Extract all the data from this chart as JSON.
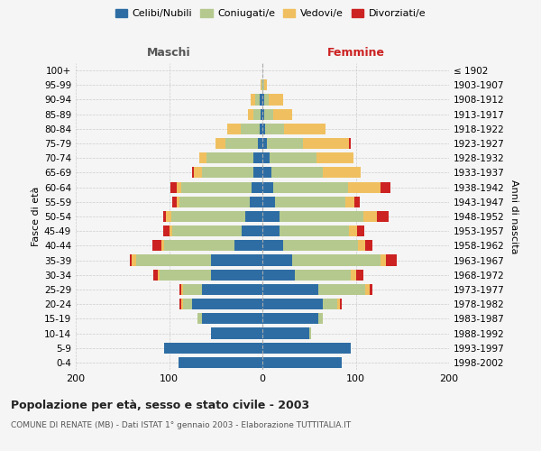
{
  "age_groups": [
    "0-4",
    "5-9",
    "10-14",
    "15-19",
    "20-24",
    "25-29",
    "30-34",
    "35-39",
    "40-44",
    "45-49",
    "50-54",
    "55-59",
    "60-64",
    "65-69",
    "70-74",
    "75-79",
    "80-84",
    "85-89",
    "90-94",
    "95-99",
    "100+"
  ],
  "birth_years": [
    "1998-2002",
    "1993-1997",
    "1988-1992",
    "1983-1987",
    "1978-1982",
    "1973-1977",
    "1968-1972",
    "1963-1967",
    "1958-1962",
    "1953-1957",
    "1948-1952",
    "1943-1947",
    "1938-1942",
    "1933-1937",
    "1928-1932",
    "1923-1927",
    "1918-1922",
    "1913-1917",
    "1908-1912",
    "1903-1907",
    "≤ 1902"
  ],
  "maschi": {
    "celibi": [
      90,
      105,
      55,
      65,
      75,
      65,
      55,
      55,
      30,
      22,
      18,
      14,
      12,
      10,
      10,
      5,
      3,
      2,
      3,
      0,
      0
    ],
    "coniugati": [
      0,
      0,
      0,
      5,
      10,
      20,
      55,
      80,
      75,
      75,
      80,
      75,
      75,
      55,
      50,
      35,
      20,
      8,
      5,
      1,
      0
    ],
    "vedovi": [
      0,
      0,
      0,
      0,
      2,
      2,
      2,
      5,
      3,
      3,
      5,
      3,
      5,
      8,
      8,
      10,
      15,
      5,
      5,
      1,
      0
    ],
    "divorziati": [
      0,
      0,
      0,
      0,
      2,
      2,
      5,
      2,
      10,
      6,
      3,
      5,
      7,
      2,
      0,
      0,
      0,
      0,
      0,
      0,
      0
    ]
  },
  "femmine": {
    "nubili": [
      85,
      95,
      50,
      60,
      65,
      60,
      35,
      32,
      22,
      18,
      18,
      14,
      12,
      10,
      8,
      5,
      3,
      2,
      2,
      0,
      0
    ],
    "coniugate": [
      0,
      0,
      2,
      5,
      15,
      50,
      60,
      95,
      80,
      75,
      90,
      75,
      80,
      55,
      50,
      38,
      20,
      10,
      5,
      2,
      0
    ],
    "vedove": [
      0,
      0,
      0,
      0,
      3,
      5,
      5,
      5,
      8,
      8,
      15,
      10,
      35,
      40,
      40,
      50,
      45,
      20,
      15,
      3,
      0
    ],
    "divorziate": [
      0,
      0,
      0,
      0,
      2,
      3,
      8,
      12,
      8,
      8,
      12,
      5,
      10,
      0,
      0,
      2,
      0,
      0,
      0,
      0,
      0
    ]
  },
  "colors": {
    "celibi": "#2e6da4",
    "coniugati": "#b5c98e",
    "vedovi": "#f0c060",
    "divorziati": "#cc2222"
  },
  "legend_labels": [
    "Celibi/Nubili",
    "Coniugati/e",
    "Vedovi/e",
    "Divorziati/e"
  ],
  "title": "Popolazione per età, sesso e stato civile - 2003",
  "subtitle": "COMUNE DI RENATE (MB) - Dati ISTAT 1° gennaio 2003 - Elaborazione TUTTITALIA.IT",
  "ylabel_left": "Fasce di età",
  "ylabel_right": "Anni di nascita",
  "xlabel_left": "Maschi",
  "xlabel_right": "Femmine",
  "xlim": 200,
  "background_color": "#f5f5f5",
  "grid_color": "#cccccc"
}
